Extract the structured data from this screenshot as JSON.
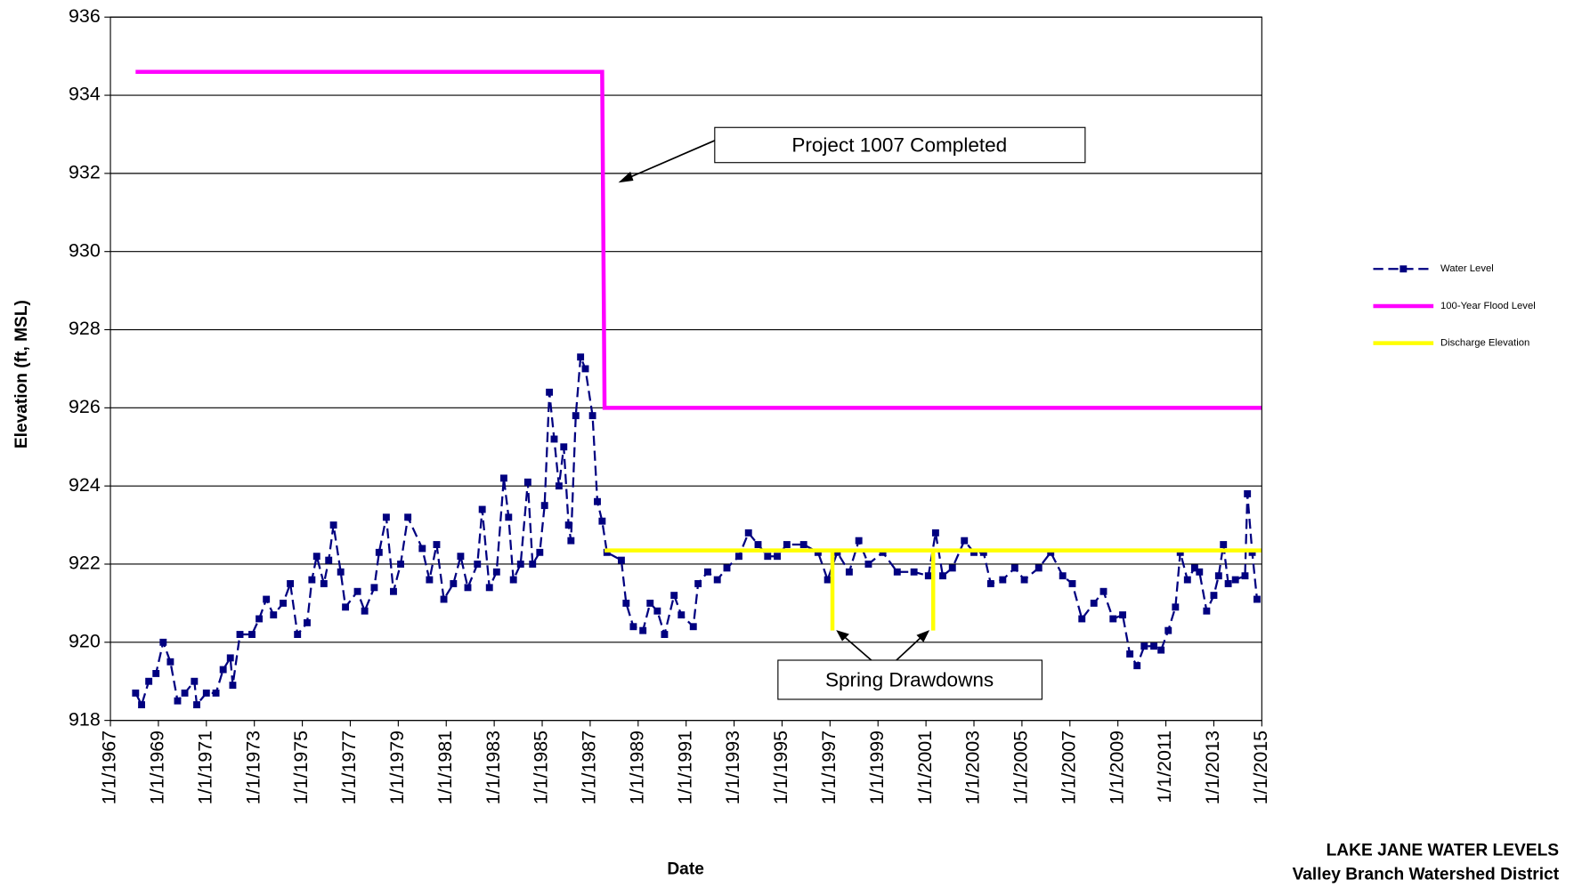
{
  "chart_data": {
    "type": "line",
    "title": "LAKE JANE WATER LEVELS",
    "subtitle": "Valley Branch Watershed District",
    "x_label": "Date",
    "y_label": "Elevation (ft, MSL)",
    "annotations": [
      "Project 1007 Completed",
      "Spring Drawdowns"
    ],
    "xlim": [
      1967,
      2015
    ],
    "xticks": [
      {
        "value": 1967,
        "label": "1/1/1967"
      },
      {
        "value": 1969,
        "label": "1/1/1969"
      },
      {
        "value": 1971,
        "label": "1/1/1971"
      },
      {
        "value": 1973,
        "label": "1/1/1973"
      },
      {
        "value": 1975,
        "label": "1/1/1975"
      },
      {
        "value": 1977,
        "label": "1/1/1977"
      },
      {
        "value": 1979,
        "label": "1/1/1979"
      },
      {
        "value": 1981,
        "label": "1/1/1981"
      },
      {
        "value": 1983,
        "label": "1/1/1983"
      },
      {
        "value": 1985,
        "label": "1/1/1985"
      },
      {
        "value": 1987,
        "label": "1/1/1987"
      },
      {
        "value": 1989,
        "label": "1/1/1989"
      },
      {
        "value": 1991,
        "label": "1/1/1991"
      },
      {
        "value": 1993,
        "label": "1/1/1993"
      },
      {
        "value": 1995,
        "label": "1/1/1995"
      },
      {
        "value": 1997,
        "label": "1/1/1997"
      },
      {
        "value": 1999,
        "label": "1/1/1999"
      },
      {
        "value": 2001,
        "label": "1/1/2001"
      },
      {
        "value": 2003,
        "label": "1/1/2003"
      },
      {
        "value": 2005,
        "label": "1/1/2005"
      },
      {
        "value": 2007,
        "label": "1/1/2007"
      },
      {
        "value": 2009,
        "label": "1/1/2009"
      },
      {
        "value": 2011,
        "label": "1/1/2011"
      },
      {
        "value": 2013,
        "label": "1/1/2013"
      },
      {
        "value": 2015,
        "label": "1/1/2015"
      }
    ],
    "ylim": [
      918,
      936
    ],
    "yticks": [
      918,
      920,
      922,
      924,
      926,
      928,
      930,
      932,
      934,
      936
    ],
    "grid": true,
    "legend": "right",
    "series": [
      {
        "name": "Water Level",
        "color": "#000080",
        "dashed": true,
        "markers": true,
        "x": [
          1968.05,
          1968.3,
          1968.6,
          1968.9,
          1969.2,
          1969.5,
          1969.8,
          1970.1,
          1970.5,
          1970.6,
          1971.0,
          1971.4,
          1971.7,
          1972.0,
          1972.1,
          1972.4,
          1972.9,
          1973.2,
          1973.5,
          1973.8,
          1974.2,
          1974.5,
          1974.8,
          1975.2,
          1975.4,
          1975.6,
          1975.9,
          1976.1,
          1976.3,
          1976.6,
          1976.8,
          1977.3,
          1977.6,
          1978.0,
          1978.2,
          1978.5,
          1978.8,
          1979.1,
          1979.4,
          1980.0,
          1980.3,
          1980.6,
          1980.9,
          1981.3,
          1981.6,
          1981.9,
          1982.3,
          1982.5,
          1982.8,
          1983.1,
          1983.4,
          1983.6,
          1983.8,
          1984.1,
          1984.4,
          1984.6,
          1984.9,
          1985.1,
          1985.3,
          1985.5,
          1985.7,
          1985.9,
          1986.1,
          1986.2,
          1986.4,
          1986.6,
          1986.8,
          1987.1,
          1987.3,
          1987.5,
          1987.7,
          1988.3,
          1988.5,
          1988.8,
          1989.2,
          1989.5,
          1989.8,
          1990.1,
          1990.5,
          1990.8,
          1991.3,
          1991.5,
          1991.9,
          1992.3,
          1992.7,
          1993.2,
          1993.6,
          1994.0,
          1994.4,
          1994.8,
          1995.2,
          1995.9,
          1996.5,
          1996.9,
          1997.3,
          1997.8,
          1998.2,
          1998.6,
          1999.2,
          1999.8,
          2000.5,
          2001.1,
          2001.4,
          2001.7,
          2002.1,
          2002.6,
          2003.0,
          2003.4,
          2003.7,
          2004.2,
          2004.7,
          2005.1,
          2005.7,
          2006.2,
          2006.7,
          2007.1,
          2007.5,
          2008.0,
          2008.4,
          2008.8,
          2009.2,
          2009.5,
          2009.8,
          2010.1,
          2010.5,
          2010.8,
          2011.1,
          2011.4,
          2011.6,
          2011.9,
          2012.2,
          2012.4,
          2012.7,
          2013.0,
          2013.2,
          2013.4,
          2013.6,
          2013.9,
          2014.3,
          2014.4,
          2014.6,
          2014.8
        ],
        "values": [
          918.7,
          918.4,
          919.0,
          919.2,
          920.0,
          919.5,
          918.5,
          918.7,
          919.0,
          918.4,
          918.7,
          918.7,
          919.3,
          919.6,
          918.9,
          920.2,
          920.2,
          920.6,
          921.1,
          920.7,
          921.0,
          921.5,
          920.2,
          920.5,
          921.6,
          922.2,
          921.5,
          922.1,
          923.0,
          921.8,
          920.9,
          921.3,
          920.8,
          921.4,
          922.3,
          923.2,
          921.3,
          922.0,
          923.2,
          922.4,
          921.6,
          922.5,
          921.1,
          921.5,
          922.2,
          921.4,
          922.0,
          923.4,
          921.4,
          921.8,
          924.2,
          923.2,
          921.6,
          922.0,
          924.1,
          922.0,
          922.3,
          923.5,
          926.4,
          925.2,
          924.0,
          925.0,
          923.0,
          922.6,
          925.8,
          927.3,
          927.0,
          925.8,
          923.6,
          923.1,
          922.3,
          922.1,
          921.0,
          920.4,
          920.3,
          921.0,
          920.8,
          920.2,
          921.2,
          920.7,
          920.4,
          921.5,
          921.8,
          921.6,
          921.9,
          922.2,
          922.8,
          922.5,
          922.2,
          922.2,
          922.5,
          922.5,
          922.3,
          921.6,
          922.3,
          921.8,
          922.6,
          922.0,
          922.3,
          921.8,
          921.8,
          921.7,
          922.8,
          921.7,
          921.9,
          922.6,
          922.3,
          922.3,
          921.5,
          921.6,
          921.9,
          921.6,
          921.9,
          922.3,
          921.7,
          921.5,
          920.6,
          921.0,
          921.3,
          920.6,
          920.7,
          919.7,
          919.4,
          919.9,
          919.9,
          919.8,
          920.3,
          920.9,
          922.3,
          921.6,
          921.9,
          921.8,
          920.8,
          921.2,
          921.7,
          922.5,
          921.5,
          921.6,
          921.7,
          923.8,
          922.3,
          921.1
        ]
      },
      {
        "name": "100-Year Flood Level",
        "color": "#ff00ff",
        "x": [
          1968.05,
          1987.5,
          1987.6,
          2015
        ],
        "values": [
          934.6,
          934.6,
          926,
          926
        ]
      },
      {
        "name": "Discharge Elevation",
        "color": "#ffff00",
        "x": [
          1987.6,
          1997.1,
          1997.1,
          1997.1,
          2001.3,
          2001.3,
          2001.3,
          2015
        ],
        "values": [
          922.35,
          922.35,
          920.3,
          922.35,
          922.35,
          920.3,
          922.35,
          922.35
        ]
      }
    ]
  }
}
